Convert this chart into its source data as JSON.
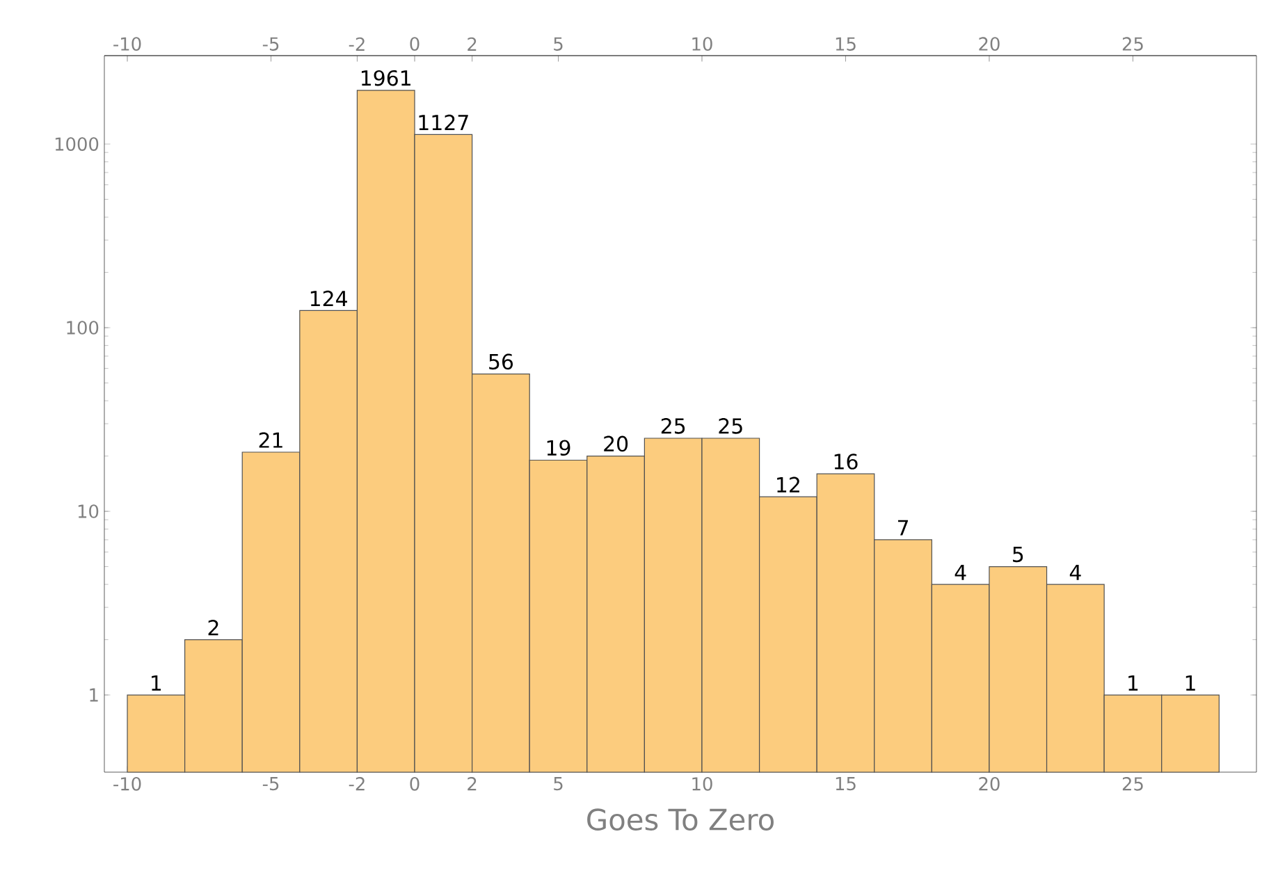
{
  "chart_data": {
    "type": "histogram",
    "xlabel": "Goes To Zero",
    "bins": [
      -10,
      -8,
      -6,
      -4,
      -2,
      0,
      2,
      4,
      6,
      8,
      10,
      12,
      14,
      16,
      18,
      20,
      22,
      24,
      26,
      28
    ],
    "values": [
      1,
      2,
      21,
      124,
      1961,
      1127,
      56,
      19,
      20,
      25,
      25,
      12,
      16,
      7,
      4,
      5,
      4,
      1,
      1
    ],
    "color": "#fccc7e",
    "log": "y",
    "data_labels": true,
    "xlim": [
      -10.8,
      29.3
    ],
    "xticks": [
      -10,
      -5,
      -2,
      0,
      2,
      5,
      10,
      15,
      20,
      25
    ],
    "x2lim": [
      -10.8,
      29.3
    ],
    "x2ticks": [
      -10,
      -5,
      -2,
      0,
      2,
      5,
      10,
      15,
      20,
      25
    ],
    "ylim": [
      0.38,
      3030
    ],
    "yticks": [
      1,
      10,
      100,
      1000
    ]
  }
}
